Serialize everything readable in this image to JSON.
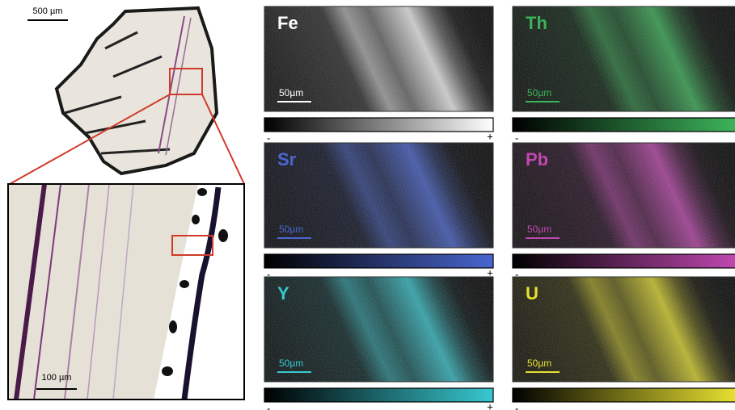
{
  "scale_bars": {
    "overview": "500 µm",
    "inset": "100 µm"
  },
  "maps": [
    {
      "element": "Fe",
      "color": "#ffffff",
      "scale": "50µm",
      "min": "-",
      "max": "+"
    },
    {
      "element": "Th",
      "color": "#3cb45a",
      "scale": "50µm",
      "min": "-"
    },
    {
      "element": "Sr",
      "color": "#4a66d0",
      "scale": "50µm",
      "min": "-",
      "max": "+"
    },
    {
      "element": "Pb",
      "color": "#c048b0",
      "scale": "50µm",
      "min": "-"
    },
    {
      "element": "Y",
      "color": "#38c8d0",
      "scale": "50µm",
      "min": "-",
      "max": "+"
    },
    {
      "element": "U",
      "color": "#e6e030",
      "scale": "50µm",
      "min": "-"
    }
  ]
}
